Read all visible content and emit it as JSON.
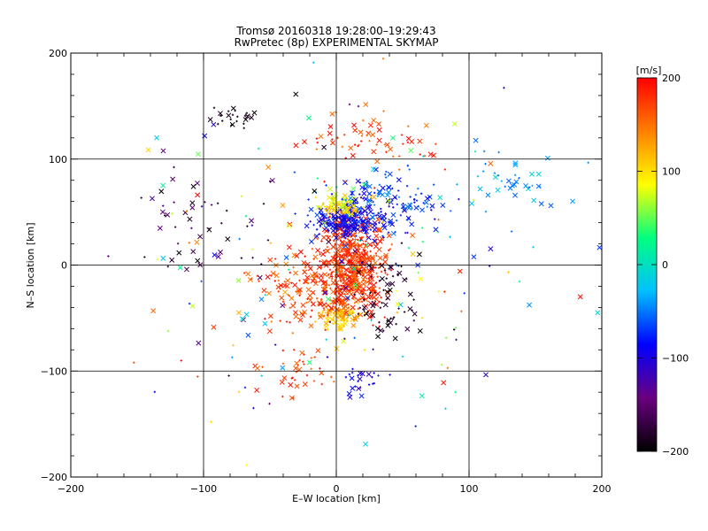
{
  "chart_data": {
    "type": "scatter",
    "title": "Tromsø 20160318 19:28:00–19:29:43",
    "subtitle": "RwPretec (8p) EXPERIMENTAL SKYMAP",
    "xlabel": "E–W location [km]",
    "ylabel": "N–S location [km]",
    "xlim": [
      -200,
      200
    ],
    "ylim": [
      -200,
      200
    ],
    "xticks": [
      "−200",
      "−100",
      "0",
      "100",
      "200"
    ],
    "yticks": [
      "−200",
      "−100",
      "0",
      "100",
      "200"
    ],
    "grid": true,
    "colorbar": {
      "label": "[m/s]",
      "range": [
        -200,
        200
      ],
      "ticks": [
        "200",
        "100",
        "0",
        "−100",
        "−200"
      ],
      "colors": [
        "#000000",
        "#6a0080",
        "#0000ff",
        "#00c0ff",
        "#00ff80",
        "#ffff00",
        "#ff8000",
        "#ff0000"
      ]
    },
    "marker_types": [
      "x",
      "+"
    ],
    "clusters": [
      {
        "cx": 12,
        "cy": 0,
        "sx": 12,
        "sy": 22,
        "n": 520,
        "vmin": 150,
        "vmax": 200
      },
      {
        "cx": 8,
        "cy": 42,
        "sx": 14,
        "sy": 7,
        "n": 260,
        "vmin": -120,
        "vmax": -60
      },
      {
        "cx": 5,
        "cy": 55,
        "sx": 8,
        "sy": 6,
        "n": 90,
        "vmin": 60,
        "vmax": 130
      },
      {
        "cx": 2,
        "cy": -48,
        "sx": 7,
        "sy": 6,
        "n": 80,
        "vmin": 90,
        "vmax": 140
      },
      {
        "cx": -18,
        "cy": -22,
        "sx": 20,
        "sy": 18,
        "n": 160,
        "vmin": 140,
        "vmax": 200
      },
      {
        "cx": 40,
        "cy": 60,
        "sx": 18,
        "sy": 14,
        "n": 120,
        "vmin": -100,
        "vmax": -40
      },
      {
        "cx": 38,
        "cy": -30,
        "sx": 10,
        "sy": 20,
        "n": 70,
        "vmin": -200,
        "vmax": -170
      },
      {
        "cx": -75,
        "cy": 140,
        "sx": 8,
        "sy": 6,
        "n": 25,
        "vmin": -200,
        "vmax": -180
      },
      {
        "cx": 20,
        "cy": 115,
        "sx": 25,
        "sy": 12,
        "n": 60,
        "vmin": 140,
        "vmax": 200
      },
      {
        "cx": -30,
        "cy": -100,
        "sx": 15,
        "sy": 12,
        "n": 40,
        "vmin": 150,
        "vmax": 200
      },
      {
        "cx": 18,
        "cy": -110,
        "sx": 12,
        "sy": 8,
        "n": 25,
        "vmin": -120,
        "vmax": -70
      },
      {
        "cx": 130,
        "cy": 80,
        "sx": 20,
        "sy": 15,
        "n": 40,
        "vmin": -60,
        "vmax": 0
      },
      {
        "cx": -100,
        "cy": 45,
        "sx": 20,
        "sy": 25,
        "n": 40,
        "vmin": -200,
        "vmax": -120
      },
      {
        "cx": 0,
        "cy": 0,
        "sx": 80,
        "sy": 80,
        "n": 220,
        "vmin": -200,
        "vmax": 200
      }
    ]
  }
}
